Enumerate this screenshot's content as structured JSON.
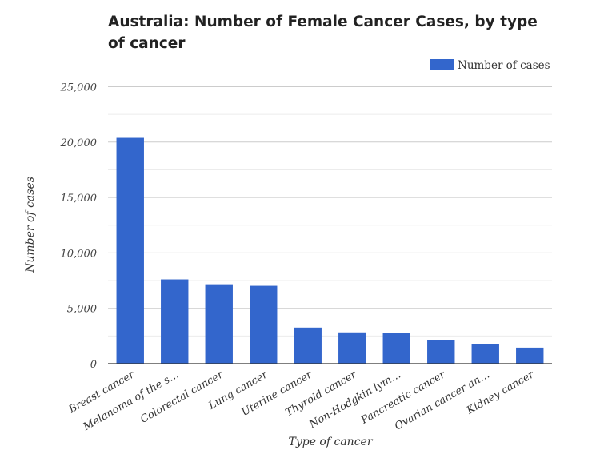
{
  "chart_data": {
    "type": "bar",
    "title": "Australia: Number of Female Cancer Cases, by type of cancer",
    "xlabel": "Type of cancer",
    "ylabel": "Number of cases",
    "categories": [
      "Breast cancer",
      "Melanoma of the s…",
      "Colorectal cancer",
      "Lung cancer",
      "Uterine cancer",
      "Thyroid cancer",
      "Non-Hodgkin lym…",
      "Pancreatic cancer",
      "Ovarian cancer an…",
      "Kidney cancer"
    ],
    "series": [
      {
        "name": "Number of cases",
        "values": [
          20380,
          7610,
          7170,
          7030,
          3260,
          2830,
          2750,
          2100,
          1740,
          1450
        ],
        "color": "#3366cc"
      }
    ],
    "ylim": [
      0,
      25000
    ],
    "yticks": [
      0,
      5000,
      10000,
      15000,
      20000,
      25000
    ],
    "ytick_labels": [
      "0",
      "5,000",
      "10,000",
      "15,000",
      "20,000",
      "25,000"
    ],
    "grid": true,
    "legend_position": "top-right"
  }
}
